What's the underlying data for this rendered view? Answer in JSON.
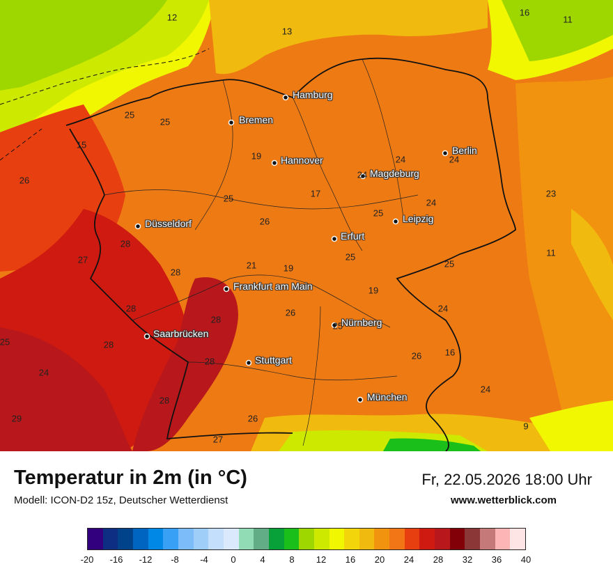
{
  "map": {
    "cities": [
      {
        "name": "Hamburg",
        "dot": [
          410,
          140
        ],
        "label": [
          420,
          136
        ]
      },
      {
        "name": "Bremen",
        "dot": [
          332,
          176
        ],
        "label": [
          343,
          172
        ]
      },
      {
        "name": "Hannover",
        "dot": [
          394,
          234
        ],
        "label": [
          403,
          230
        ]
      },
      {
        "name": "Berlin",
        "dot": [
          639,
          220
        ],
        "label": [
          649,
          216
        ]
      },
      {
        "name": "Magdeburg",
        "dot": [
          521,
          253
        ],
        "label": [
          531,
          249
        ]
      },
      {
        "name": "Leipzig",
        "dot": [
          568,
          318
        ],
        "label": [
          578,
          314
        ]
      },
      {
        "name": "Düsseldorf",
        "dot": [
          198,
          325
        ],
        "label": [
          208,
          321
        ]
      },
      {
        "name": "Erfurt",
        "dot": [
          480,
          343
        ],
        "label": [
          489,
          339
        ]
      },
      {
        "name": "Frankfurt am Main",
        "dot": [
          325,
          415
        ],
        "label": [
          335,
          411
        ]
      },
      {
        "name": "Nürnberg",
        "dot": [
          480,
          467
        ],
        "label": [
          490,
          463
        ]
      },
      {
        "name": "Saarbrücken",
        "dot": [
          211,
          483
        ],
        "label": [
          220,
          479
        ]
      },
      {
        "name": "Stuttgart",
        "dot": [
          357,
          521
        ],
        "label": [
          366,
          517
        ]
      },
      {
        "name": "München",
        "dot": [
          517,
          574
        ],
        "label": [
          527,
          570
        ]
      }
    ],
    "values": [
      {
        "v": "12",
        "p": [
          247,
          25
        ]
      },
      {
        "v": "13",
        "p": [
          412,
          45
        ]
      },
      {
        "v": "16",
        "p": [
          753,
          18
        ]
      },
      {
        "v": "11",
        "p": [
          815,
          28
        ]
      },
      {
        "v": "25",
        "p": [
          186,
          165
        ]
      },
      {
        "v": "25",
        "p": [
          237,
          175
        ]
      },
      {
        "v": "15",
        "p": [
          117,
          208
        ]
      },
      {
        "v": "19",
        "p": [
          368,
          224
        ]
      },
      {
        "v": "24",
        "p": [
          575,
          229
        ]
      },
      {
        "v": "24",
        "p": [
          652,
          229
        ]
      },
      {
        "v": "24",
        "p": [
          520,
          251
        ]
      },
      {
        "v": "26",
        "p": [
          35,
          259
        ]
      },
      {
        "v": "17",
        "p": [
          453,
          278
        ]
      },
      {
        "v": "23",
        "p": [
          791,
          278
        ]
      },
      {
        "v": "25",
        "p": [
          328,
          285
        ]
      },
      {
        "v": "24",
        "p": [
          619,
          291
        ]
      },
      {
        "v": "25",
        "p": [
          543,
          306
        ]
      },
      {
        "v": "26",
        "p": [
          380,
          318
        ]
      },
      {
        "v": "28",
        "p": [
          180,
          350
        ]
      },
      {
        "v": "11",
        "p": [
          791,
          363
        ]
      },
      {
        "v": "27",
        "p": [
          119,
          373
        ]
      },
      {
        "v": "25",
        "p": [
          503,
          369
        ]
      },
      {
        "v": "21",
        "p": [
          361,
          381
        ]
      },
      {
        "v": "19",
        "p": [
          414,
          385
        ]
      },
      {
        "v": "25",
        "p": [
          645,
          379
        ]
      },
      {
        "v": "28",
        "p": [
          252,
          391
        ]
      },
      {
        "v": "19",
        "p": [
          536,
          417
        ]
      },
      {
        "v": "28",
        "p": [
          188,
          443
        ]
      },
      {
        "v": "24",
        "p": [
          636,
          443
        ]
      },
      {
        "v": "26",
        "p": [
          417,
          449
        ]
      },
      {
        "v": "28",
        "p": [
          310,
          459
        ]
      },
      {
        "v": "25",
        "p": [
          485,
          468
        ]
      },
      {
        "v": "25",
        "p": [
          7,
          491
        ]
      },
      {
        "v": "28",
        "p": [
          156,
          495
        ]
      },
      {
        "v": "16",
        "p": [
          646,
          506
        ]
      },
      {
        "v": "26",
        "p": [
          598,
          511
        ]
      },
      {
        "v": "28",
        "p": [
          301,
          519
        ]
      },
      {
        "v": "24",
        "p": [
          63,
          535
        ]
      },
      {
        "v": "24",
        "p": [
          697,
          559
        ]
      },
      {
        "v": "28",
        "p": [
          236,
          575
        ]
      },
      {
        "v": "29",
        "p": [
          24,
          601
        ]
      },
      {
        "v": "26",
        "p": [
          363,
          601
        ]
      },
      {
        "v": "9",
        "p": [
          755,
          612
        ]
      },
      {
        "v": "27",
        "p": [
          313,
          631
        ]
      }
    ]
  },
  "footer": {
    "title": "Temperatur in 2m (in °C)",
    "subtitle": "Modell: ICON-D2 15z, Deutscher Wetterdienst",
    "datetime": "Fr, 22.05.2026 18:00 Uhr",
    "website": "www.wetterblick.com"
  },
  "legend": {
    "colors": [
      "#32007e",
      "#0d2e83",
      "#00438a",
      "#0065c0",
      "#0088e6",
      "#38a0f5",
      "#7cbcf9",
      "#9fcff9",
      "#c3dffb",
      "#dbe9fc",
      "#92dcb5",
      "#62ac86",
      "#07a039",
      "#1abf1a",
      "#9ed600",
      "#cde900",
      "#f0f700",
      "#f2d50a",
      "#f1ba0e",
      "#f29310",
      "#f27615",
      "#e73f0f",
      "#ce1a10",
      "#b8171b",
      "#820008",
      "#8c3737",
      "#c67979",
      "#feb5b5",
      "#fde5e5"
    ],
    "labels": [
      "-20",
      "-16",
      "-12",
      "-8",
      "-4",
      "0",
      "4",
      "8",
      "12",
      "16",
      "20",
      "24",
      "28",
      "32",
      "36",
      "40"
    ]
  }
}
